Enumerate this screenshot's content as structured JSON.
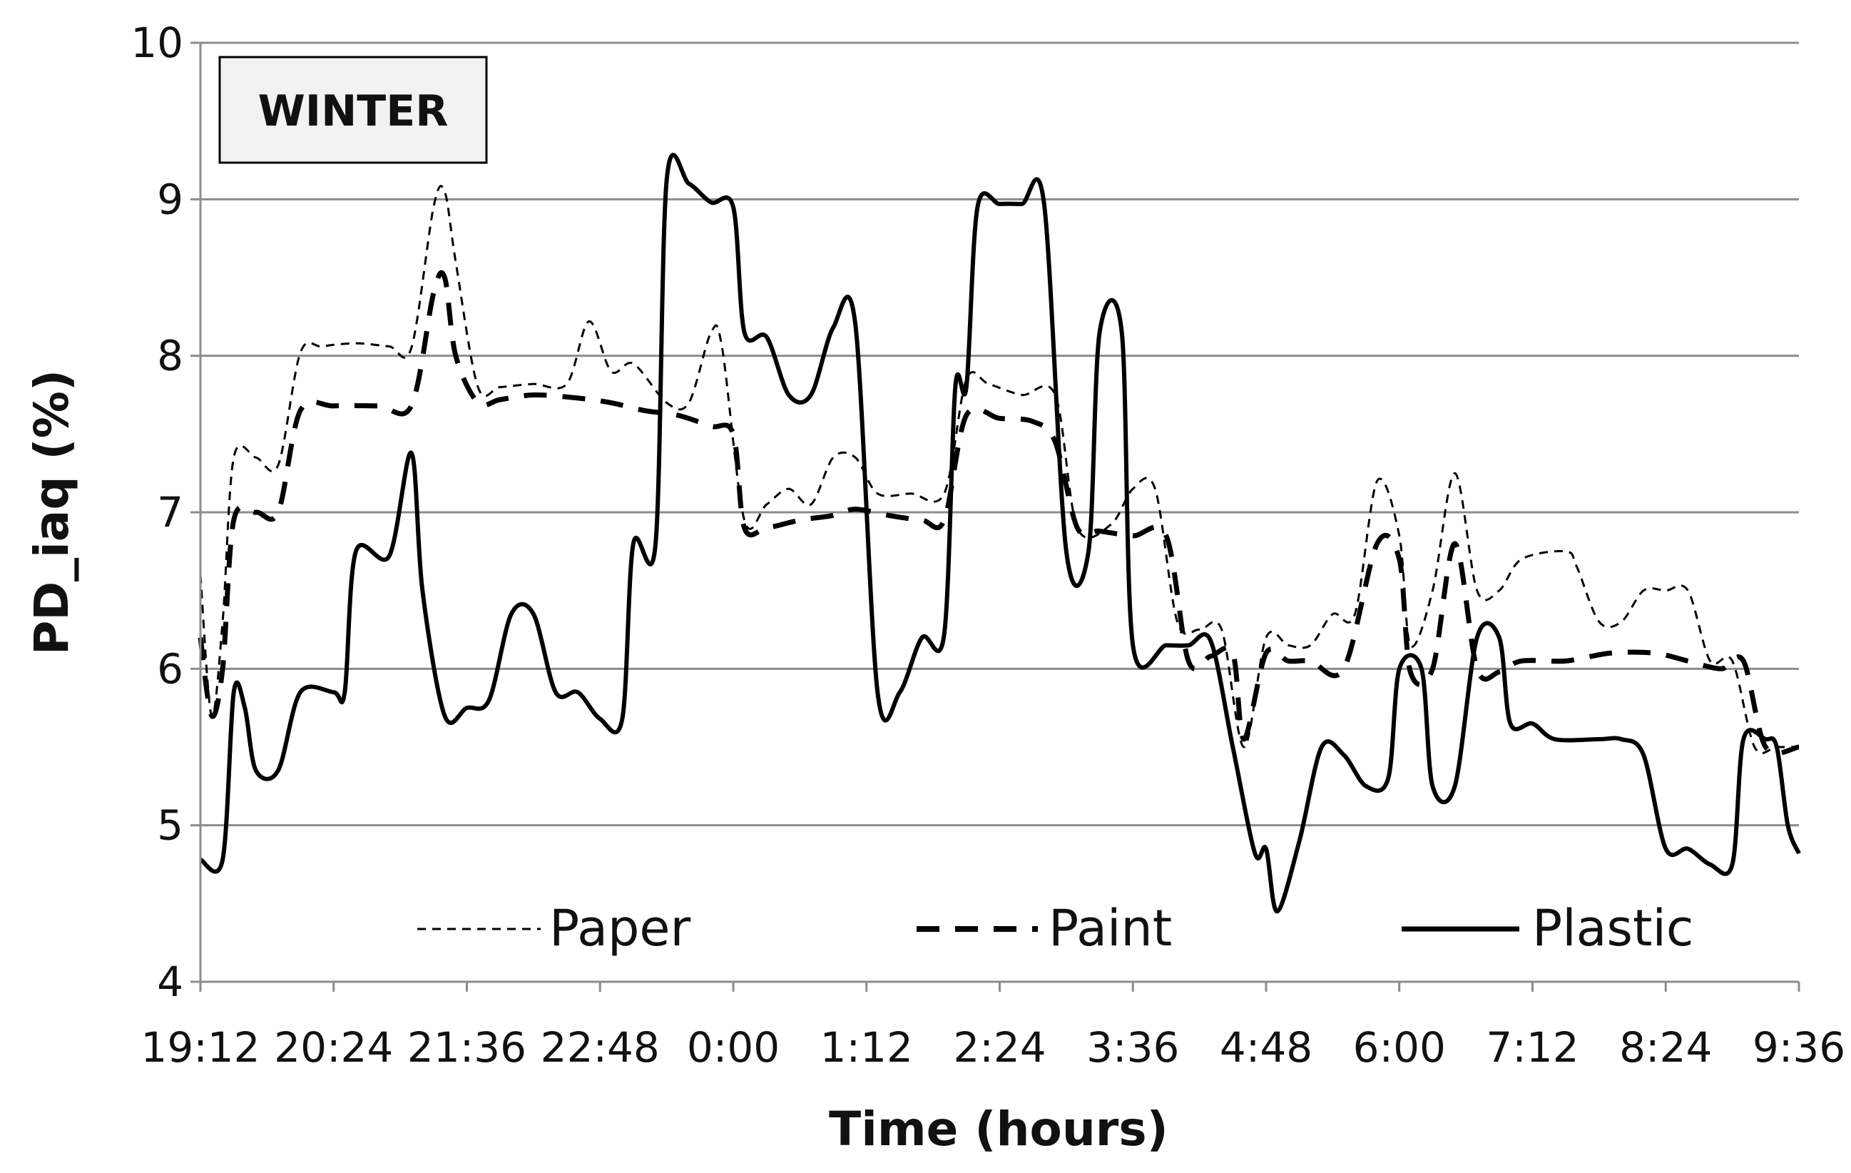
{
  "chart_data": {
    "type": "line",
    "badge": "WINTER",
    "xlabel": "Time (hours)",
    "ylabel": "PD_iaq (%)",
    "ylim": [
      4,
      10
    ],
    "yticks": [
      "4",
      "5",
      "6",
      "7",
      "8",
      "9",
      "10"
    ],
    "xlim": [
      "19:12",
      "9:36"
    ],
    "xticks": [
      "19:12",
      "20:24",
      "21:36",
      "22:48",
      "0:00",
      "1:12",
      "2:24",
      "3:36",
      "4:48",
      "6:00",
      "7:12",
      "8:24",
      "9:36"
    ],
    "grid": "horizontal",
    "legend_position": "bottom",
    "colors": {
      "line": "#000000",
      "grid": "#8c8c8c",
      "badge_fill": "#f2f2f2"
    },
    "series": [
      {
        "name": "Paper",
        "style": "dotted",
        "points": [
          [
            "19:12",
            6.6
          ],
          [
            "19:18",
            5.7
          ],
          [
            "19:24",
            6.3
          ],
          [
            "19:30",
            7.35
          ],
          [
            "19:42",
            7.35
          ],
          [
            "19:54",
            7.3
          ],
          [
            "20:06",
            8.02
          ],
          [
            "20:18",
            8.06
          ],
          [
            "20:36",
            8.08
          ],
          [
            "20:54",
            8.06
          ],
          [
            "21:06",
            8.05
          ],
          [
            "21:18",
            8.95
          ],
          [
            "21:24",
            9.05
          ],
          [
            "21:30",
            8.6
          ],
          [
            "21:42",
            7.8
          ],
          [
            "21:54",
            7.8
          ],
          [
            "22:12",
            7.82
          ],
          [
            "22:30",
            7.82
          ],
          [
            "22:42",
            8.22
          ],
          [
            "22:54",
            7.9
          ],
          [
            "23:06",
            7.95
          ],
          [
            "23:24",
            7.7
          ],
          [
            "23:36",
            7.7
          ],
          [
            "23:48",
            8.15
          ],
          [
            "23:54",
            8.05
          ],
          [
            "0:06",
            6.95
          ],
          [
            "0:18",
            7.05
          ],
          [
            "0:30",
            7.15
          ],
          [
            "0:42",
            7.05
          ],
          [
            "0:54",
            7.35
          ],
          [
            "1:06",
            7.35
          ],
          [
            "1:18",
            7.12
          ],
          [
            "1:36",
            7.12
          ],
          [
            "1:54",
            7.12
          ],
          [
            "2:06",
            7.85
          ],
          [
            "2:18",
            7.82
          ],
          [
            "2:36",
            7.75
          ],
          [
            "2:54",
            7.75
          ],
          [
            "3:06",
            6.9
          ],
          [
            "3:24",
            6.92
          ],
          [
            "3:36",
            7.15
          ],
          [
            "3:48",
            7.15
          ],
          [
            "4:00",
            6.3
          ],
          [
            "4:12",
            6.25
          ],
          [
            "4:24",
            6.25
          ],
          [
            "4:36",
            5.5
          ],
          [
            "4:48",
            6.2
          ],
          [
            "5:00",
            6.15
          ],
          [
            "5:12",
            6.15
          ],
          [
            "5:24",
            6.35
          ],
          [
            "5:36",
            6.35
          ],
          [
            "5:48",
            7.2
          ],
          [
            "6:00",
            6.85
          ],
          [
            "6:06",
            6.15
          ],
          [
            "6:18",
            6.5
          ],
          [
            "6:30",
            7.25
          ],
          [
            "6:42",
            6.5
          ],
          [
            "6:54",
            6.5
          ],
          [
            "7:06",
            6.7
          ],
          [
            "7:30",
            6.75
          ],
          [
            "7:36",
            6.65
          ],
          [
            "7:48",
            6.3
          ],
          [
            "8:00",
            6.3
          ],
          [
            "8:12",
            6.5
          ],
          [
            "8:24",
            6.5
          ],
          [
            "8:36",
            6.5
          ],
          [
            "8:48",
            6.05
          ],
          [
            "9:00",
            6.05
          ],
          [
            "9:12",
            5.5
          ],
          [
            "9:24",
            5.5
          ],
          [
            "9:36",
            5.5
          ]
        ]
      },
      {
        "name": "Paint",
        "style": "dashed",
        "points": [
          [
            "19:12",
            6.2
          ],
          [
            "19:18",
            5.7
          ],
          [
            "19:24",
            6.0
          ],
          [
            "19:30",
            6.95
          ],
          [
            "19:42",
            7.0
          ],
          [
            "19:54",
            7.0
          ],
          [
            "20:06",
            7.65
          ],
          [
            "20:24",
            7.68
          ],
          [
            "20:48",
            7.68
          ],
          [
            "21:06",
            7.68
          ],
          [
            "21:18",
            8.4
          ],
          [
            "21:24",
            8.5
          ],
          [
            "21:30",
            8.0
          ],
          [
            "21:42",
            7.7
          ],
          [
            "21:54",
            7.72
          ],
          [
            "22:12",
            7.75
          ],
          [
            "22:36",
            7.73
          ],
          [
            "22:54",
            7.7
          ],
          [
            "23:12",
            7.65
          ],
          [
            "23:30",
            7.62
          ],
          [
            "23:48",
            7.55
          ],
          [
            "0:00",
            7.5
          ],
          [
            "0:06",
            6.9
          ],
          [
            "0:18",
            6.9
          ],
          [
            "0:36",
            6.95
          ],
          [
            "0:54",
            6.98
          ],
          [
            "1:06",
            7.02
          ],
          [
            "1:24",
            6.98
          ],
          [
            "1:42",
            6.95
          ],
          [
            "1:54",
            6.95
          ],
          [
            "2:06",
            7.62
          ],
          [
            "2:24",
            7.6
          ],
          [
            "2:42",
            7.58
          ],
          [
            "2:54",
            7.45
          ],
          [
            "3:06",
            6.9
          ],
          [
            "3:18",
            6.88
          ],
          [
            "3:36",
            6.85
          ],
          [
            "3:54",
            6.85
          ],
          [
            "4:06",
            6.05
          ],
          [
            "4:18",
            6.08
          ],
          [
            "4:30",
            6.1
          ],
          [
            "4:36",
            5.55
          ],
          [
            "4:48",
            6.1
          ],
          [
            "5:00",
            6.05
          ],
          [
            "5:12",
            6.05
          ],
          [
            "5:30",
            6.0
          ],
          [
            "5:48",
            6.8
          ],
          [
            "6:00",
            6.7
          ],
          [
            "6:06",
            5.98
          ],
          [
            "6:18",
            6.0
          ],
          [
            "6:30",
            6.8
          ],
          [
            "6:42",
            6.0
          ],
          [
            "6:54",
            5.98
          ],
          [
            "7:06",
            6.05
          ],
          [
            "7:30",
            6.05
          ],
          [
            "7:54",
            6.1
          ],
          [
            "8:18",
            6.1
          ],
          [
            "8:36",
            6.05
          ],
          [
            "8:54",
            6.0
          ],
          [
            "9:06",
            6.05
          ],
          [
            "9:18",
            5.5
          ],
          [
            "9:36",
            5.5
          ]
        ]
      },
      {
        "name": "Plastic",
        "style": "solid",
        "points": [
          [
            "19:12",
            4.78
          ],
          [
            "19:24",
            4.78
          ],
          [
            "19:30",
            5.85
          ],
          [
            "19:36",
            5.75
          ],
          [
            "19:42",
            5.35
          ],
          [
            "19:54",
            5.35
          ],
          [
            "20:06",
            5.85
          ],
          [
            "20:24",
            5.85
          ],
          [
            "20:30",
            5.85
          ],
          [
            "20:36",
            6.75
          ],
          [
            "20:54",
            6.72
          ],
          [
            "21:06",
            7.38
          ],
          [
            "21:12",
            6.5
          ],
          [
            "21:24",
            5.7
          ],
          [
            "21:36",
            5.75
          ],
          [
            "21:48",
            5.8
          ],
          [
            "22:00",
            6.35
          ],
          [
            "22:12",
            6.35
          ],
          [
            "22:24",
            5.85
          ],
          [
            "22:36",
            5.85
          ],
          [
            "22:48",
            5.68
          ],
          [
            "23:00",
            5.68
          ],
          [
            "23:06",
            6.8
          ],
          [
            "23:18",
            6.8
          ],
          [
            "23:24",
            9.12
          ],
          [
            "23:36",
            9.1
          ],
          [
            "23:48",
            8.98
          ],
          [
            "0:00",
            8.95
          ],
          [
            "0:06",
            8.15
          ],
          [
            "0:18",
            8.12
          ],
          [
            "0:30",
            7.75
          ],
          [
            "0:42",
            7.75
          ],
          [
            "0:54",
            8.18
          ],
          [
            "1:06",
            8.2
          ],
          [
            "1:18",
            5.85
          ],
          [
            "1:30",
            5.85
          ],
          [
            "1:42",
            6.2
          ],
          [
            "1:54",
            6.22
          ],
          [
            "2:00",
            7.8
          ],
          [
            "2:06",
            7.8
          ],
          [
            "2:12",
            8.95
          ],
          [
            "2:24",
            8.97
          ],
          [
            "2:36",
            8.97
          ],
          [
            "2:48",
            8.97
          ],
          [
            "3:00",
            6.75
          ],
          [
            "3:12",
            6.75
          ],
          [
            "3:18",
            8.15
          ],
          [
            "3:30",
            8.15
          ],
          [
            "3:36",
            6.15
          ],
          [
            "3:54",
            6.15
          ],
          [
            "4:06",
            6.15
          ],
          [
            "4:18",
            6.18
          ],
          [
            "4:30",
            5.5
          ],
          [
            "4:42",
            4.82
          ],
          [
            "4:48",
            4.85
          ],
          [
            "4:54",
            4.45
          ],
          [
            "5:06",
            4.9
          ],
          [
            "5:18",
            5.5
          ],
          [
            "5:30",
            5.45
          ],
          [
            "5:42",
            5.25
          ],
          [
            "5:54",
            5.3
          ],
          [
            "6:00",
            6.0
          ],
          [
            "6:12",
            6.0
          ],
          [
            "6:18",
            5.25
          ],
          [
            "6:30",
            5.25
          ],
          [
            "6:42",
            6.2
          ],
          [
            "6:54",
            6.2
          ],
          [
            "7:00",
            5.65
          ],
          [
            "7:12",
            5.65
          ],
          [
            "7:24",
            5.55
          ],
          [
            "7:48",
            5.55
          ],
          [
            "8:00",
            5.55
          ],
          [
            "8:12",
            5.45
          ],
          [
            "8:24",
            4.85
          ],
          [
            "8:36",
            4.85
          ],
          [
            "8:48",
            4.75
          ],
          [
            "9:00",
            4.75
          ],
          [
            "9:06",
            5.55
          ],
          [
            "9:18",
            5.55
          ],
          [
            "9:24",
            5.5
          ],
          [
            "9:30",
            5.0
          ],
          [
            "9:36",
            4.82
          ]
        ]
      }
    ]
  }
}
